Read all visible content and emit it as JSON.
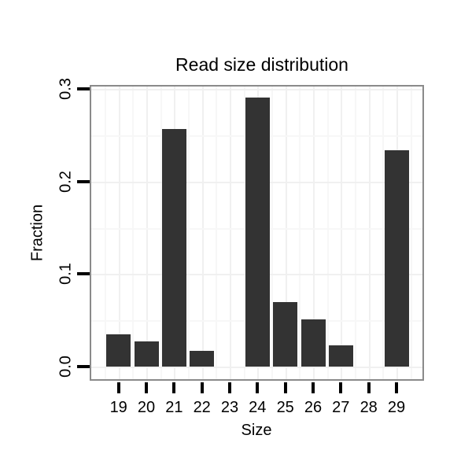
{
  "figure": {
    "title": "Read size distribution",
    "xlabel": "Size",
    "ylabel": "Fraction"
  },
  "chart_data": {
    "type": "bar",
    "title": "Read size distribution",
    "xlabel": "Size",
    "ylabel": "Fraction",
    "categories": [
      "19",
      "20",
      "21",
      "22",
      "23",
      "24",
      "25",
      "26",
      "27",
      "28",
      "29"
    ],
    "values": [
      0.035,
      0.027,
      0.257,
      0.017,
      0,
      0.291,
      0.07,
      0.051,
      0.023,
      0,
      0.234
    ],
    "ylim": [
      0,
      0.303
    ],
    "yticks": [
      0,
      0.1,
      0.2,
      0.3
    ],
    "ytick_labels": [
      "0.0",
      "0.1",
      "0.2",
      "0.3"
    ],
    "minor_yticks": [
      0.05,
      0.15,
      0.25
    ],
    "grid": "major and minor gridlines, very light gray, horizontal and vertical",
    "legend": "none",
    "bar_color": "#333333",
    "panel_border_color": "#8a8a8a",
    "major_grid_color": "#f0f0f0",
    "minor_grid_color": "#f7f7f7",
    "tick_color": "#000000",
    "text_color": "#000000",
    "background_color": "#ffffff"
  }
}
